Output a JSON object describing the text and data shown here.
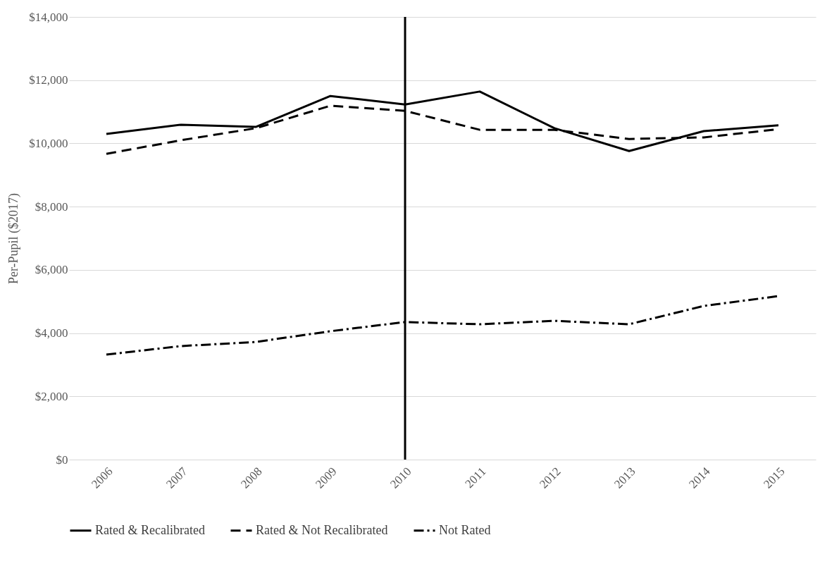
{
  "chart_data": {
    "type": "line",
    "ylabel": "Per-Pupil ($2017)",
    "categories": [
      "2006",
      "2007",
      "2008",
      "2009",
      "2010",
      "2011",
      "2012",
      "2013",
      "2014",
      "2015"
    ],
    "series": [
      {
        "name": "Rated & Recalibrated",
        "color": "#000000",
        "line_style": "solid",
        "values": [
          10300,
          10590,
          10520,
          11500,
          11230,
          11640,
          10480,
          9760,
          10390,
          10570
        ]
      },
      {
        "name": "Rated & Not Recalibrated",
        "color": "#000000",
        "line_style": "dashed",
        "values": [
          9670,
          10100,
          10480,
          11190,
          11030,
          10430,
          10430,
          10140,
          10190,
          10450
        ]
      },
      {
        "name": "Not Rated",
        "color": "#000000",
        "line_style": "dashdot",
        "values": [
          3320,
          3590,
          3720,
          4060,
          4350,
          4280,
          4390,
          4280,
          4860,
          5170
        ]
      }
    ],
    "ylim": [
      0,
      14000
    ],
    "yticks": [
      {
        "value": 0,
        "label": "$0"
      },
      {
        "value": 2000,
        "label": "$2,000"
      },
      {
        "value": 4000,
        "label": "$4,000"
      },
      {
        "value": 6000,
        "label": "$6,000"
      },
      {
        "value": 8000,
        "label": "$8,000"
      },
      {
        "value": 10000,
        "label": "$10,000"
      },
      {
        "value": 12000,
        "label": "$12,000"
      },
      {
        "value": 14000,
        "label": "$14,000"
      }
    ],
    "ref_lines": [
      {
        "axis": "x",
        "value": "2010",
        "color": "#000000"
      }
    ],
    "grid": "y",
    "legend": "bottom",
    "marker": "none"
  }
}
